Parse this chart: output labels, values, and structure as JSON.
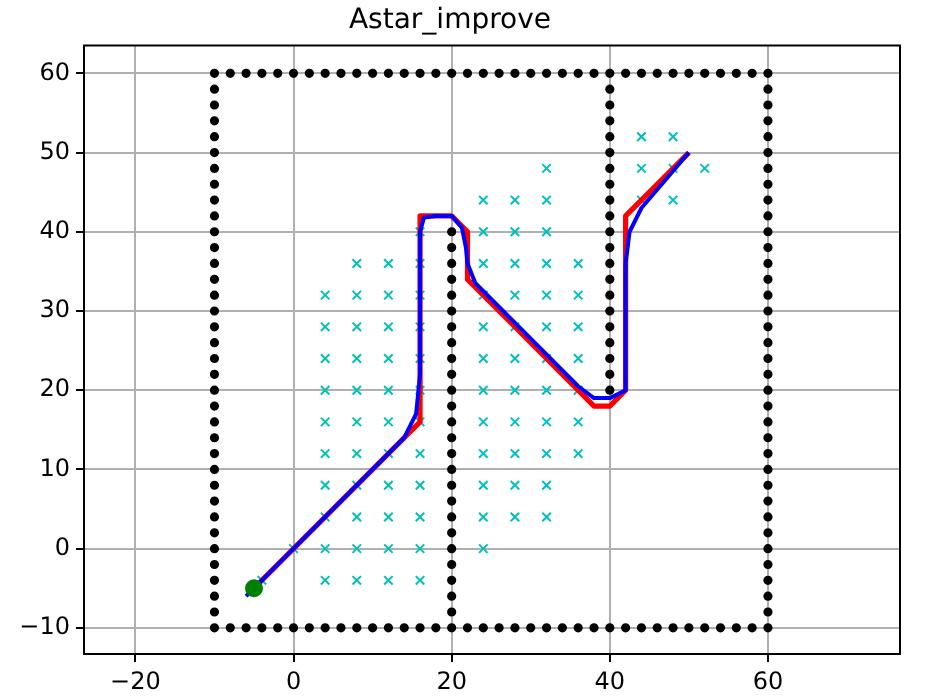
{
  "chart_data": {
    "type": "scatter",
    "title": "Astar_improve",
    "xlim": [
      -26.5,
      76.7
    ],
    "ylim": [
      -13.3,
      63.5
    ],
    "xticks": [
      {
        "value": -20,
        "label": "−20"
      },
      0,
      20,
      40,
      60
    ],
    "yticks": [
      {
        "value": -10,
        "label": "−10"
      },
      0,
      10,
      20,
      30,
      40,
      50,
      60
    ],
    "grid": true,
    "legend": false,
    "series": [
      {
        "type": "scatter",
        "marker": "circle",
        "color": "#000000",
        "x": [
          -10,
          -8,
          -6,
          -4,
          -2,
          0,
          2,
          4,
          6,
          8,
          10,
          12,
          14,
          16,
          18,
          20,
          22,
          24,
          26,
          28,
          30,
          32,
          34,
          36,
          38,
          40,
          42,
          44,
          46,
          48,
          50,
          52,
          54,
          56,
          58,
          60
        ],
        "values": [
          -10,
          -10,
          -10,
          -10,
          -10,
          -10,
          -10,
          -10,
          -10,
          -10,
          -10,
          -10,
          -10,
          -10,
          -10,
          -10,
          -10,
          -10,
          -10,
          -10,
          -10,
          -10,
          -10,
          -10,
          -10,
          -10,
          -10,
          -10,
          -10,
          -10,
          -10,
          -10,
          -10,
          -10,
          -10,
          -10
        ]
      },
      {
        "type": "scatter",
        "marker": "circle",
        "color": "#000000",
        "x": [
          -10,
          -8,
          -6,
          -4,
          -2,
          0,
          2,
          4,
          6,
          8,
          10,
          12,
          14,
          16,
          18,
          20,
          22,
          24,
          26,
          28,
          30,
          32,
          34,
          36,
          38,
          40,
          42,
          44,
          46,
          48,
          50,
          52,
          54,
          56,
          58,
          60
        ],
        "values": [
          60,
          60,
          60,
          60,
          60,
          60,
          60,
          60,
          60,
          60,
          60,
          60,
          60,
          60,
          60,
          60,
          60,
          60,
          60,
          60,
          60,
          60,
          60,
          60,
          60,
          60,
          60,
          60,
          60,
          60,
          60,
          60,
          60,
          60,
          60,
          60
        ]
      },
      {
        "type": "scatter",
        "marker": "circle",
        "color": "#000000",
        "x": [
          -10,
          -10,
          -10,
          -10,
          -10,
          -10,
          -10,
          -10,
          -10,
          -10,
          -10,
          -10,
          -10,
          -10,
          -10,
          -10,
          -10,
          -10,
          -10,
          -10,
          -10,
          -10,
          -10,
          -10,
          -10,
          -10,
          -10,
          -10,
          -10,
          -10,
          -10,
          -10,
          -10,
          -10
        ],
        "values": [
          -8,
          -6,
          -4,
          -2,
          0,
          2,
          4,
          6,
          8,
          10,
          12,
          14,
          16,
          18,
          20,
          22,
          24,
          26,
          28,
          30,
          32,
          34,
          36,
          38,
          40,
          42,
          44,
          46,
          48,
          50,
          52,
          54,
          56,
          58
        ]
      },
      {
        "type": "scatter",
        "marker": "circle",
        "color": "#000000",
        "x": [
          60,
          60,
          60,
          60,
          60,
          60,
          60,
          60,
          60,
          60,
          60,
          60,
          60,
          60,
          60,
          60,
          60,
          60,
          60,
          60,
          60,
          60,
          60,
          60,
          60,
          60,
          60,
          60,
          60,
          60,
          60,
          60,
          60,
          60
        ],
        "values": [
          -8,
          -6,
          -4,
          -2,
          0,
          2,
          4,
          6,
          8,
          10,
          12,
          14,
          16,
          18,
          20,
          22,
          24,
          26,
          28,
          30,
          32,
          34,
          36,
          38,
          40,
          42,
          44,
          46,
          48,
          50,
          52,
          54,
          56,
          58
        ]
      },
      {
        "type": "scatter",
        "marker": "circle",
        "color": "#000000",
        "x": [
          20,
          20,
          20,
          20,
          20,
          20,
          20,
          20,
          20,
          20,
          20,
          20,
          20,
          20,
          20,
          20,
          20,
          20,
          20,
          20,
          20,
          20,
          20,
          20,
          20
        ],
        "values": [
          -8,
          -6,
          -4,
          -2,
          0,
          2,
          4,
          6,
          8,
          10,
          12,
          14,
          16,
          18,
          20,
          22,
          24,
          26,
          28,
          30,
          32,
          34,
          36,
          38,
          40
        ]
      },
      {
        "type": "scatter",
        "marker": "circle",
        "color": "#000000",
        "x": [
          40,
          40,
          40,
          40,
          40,
          40,
          40,
          40,
          40,
          40,
          40,
          40,
          40,
          40,
          40,
          40,
          40,
          40,
          40,
          40
        ],
        "values": [
          20,
          22,
          24,
          26,
          28,
          30,
          32,
          34,
          36,
          38,
          40,
          42,
          44,
          46,
          48,
          50,
          52,
          54,
          56,
          58
        ]
      },
      {
        "type": "scatter",
        "marker": "cross",
        "color": "#00bfbf",
        "x": [
          44,
          48,
          32,
          44,
          48,
          52,
          24,
          28,
          32,
          44,
          48,
          16,
          24,
          28,
          32,
          8,
          12,
          16,
          24,
          28,
          32,
          36,
          4,
          8,
          12,
          16,
          24,
          28,
          32,
          36,
          4,
          8,
          12,
          16,
          24,
          28,
          32,
          36,
          4,
          8,
          12,
          16,
          24,
          28,
          32,
          36,
          4,
          8,
          12,
          16,
          24,
          28,
          32,
          36,
          4,
          8,
          12,
          16,
          24,
          28,
          32,
          36,
          4,
          8,
          12,
          16,
          24,
          28,
          32,
          36,
          4,
          8,
          12,
          16,
          24,
          28,
          32,
          4,
          8,
          12,
          16,
          24,
          28,
          32,
          0,
          4,
          8,
          12,
          16,
          24,
          -4,
          4,
          8,
          12,
          16
        ],
        "values": [
          52,
          52,
          48,
          48,
          48,
          48,
          44,
          44,
          44,
          44,
          44,
          40,
          40,
          40,
          40,
          36,
          36,
          36,
          36,
          36,
          36,
          36,
          32,
          32,
          32,
          32,
          32,
          32,
          32,
          32,
          28,
          28,
          28,
          28,
          28,
          28,
          28,
          28,
          24,
          24,
          24,
          24,
          24,
          24,
          24,
          24,
          20,
          20,
          20,
          20,
          20,
          20,
          20,
          20,
          16,
          16,
          16,
          16,
          16,
          16,
          16,
          16,
          12,
          12,
          12,
          12,
          12,
          12,
          12,
          12,
          8,
          8,
          8,
          8,
          8,
          8,
          8,
          4,
          4,
          4,
          4,
          4,
          4,
          4,
          0,
          0,
          0,
          0,
          0,
          0,
          -4,
          -4,
          -4,
          -4,
          -4
        ]
      },
      {
        "type": "line",
        "marker": "none",
        "color": "#ff0000",
        "x": [
          -5,
          16,
          16,
          20,
          22,
          22,
          38,
          40,
          42,
          42,
          50
        ],
        "values": [
          -5,
          16,
          42,
          42,
          40,
          34,
          18,
          18,
          20,
          42,
          50
        ]
      },
      {
        "type": "line",
        "marker": "none",
        "color": "#0000ff",
        "x": [
          -6,
          14,
          15.5,
          16,
          16,
          16.5,
          18,
          20,
          21.3,
          21.8,
          22,
          23,
          30,
          36,
          38,
          40,
          42,
          42,
          42.5,
          44,
          50
        ],
        "values": [
          -6,
          14,
          17,
          22,
          40,
          41.8,
          42,
          42,
          40.5,
          38,
          36,
          33.5,
          26.5,
          20.5,
          19,
          19,
          20,
          36,
          40,
          43,
          50
        ]
      },
      {
        "type": "scatter",
        "marker": "circle",
        "color": "#008000",
        "x": [
          -5
        ],
        "values": [
          -5
        ]
      }
    ]
  }
}
